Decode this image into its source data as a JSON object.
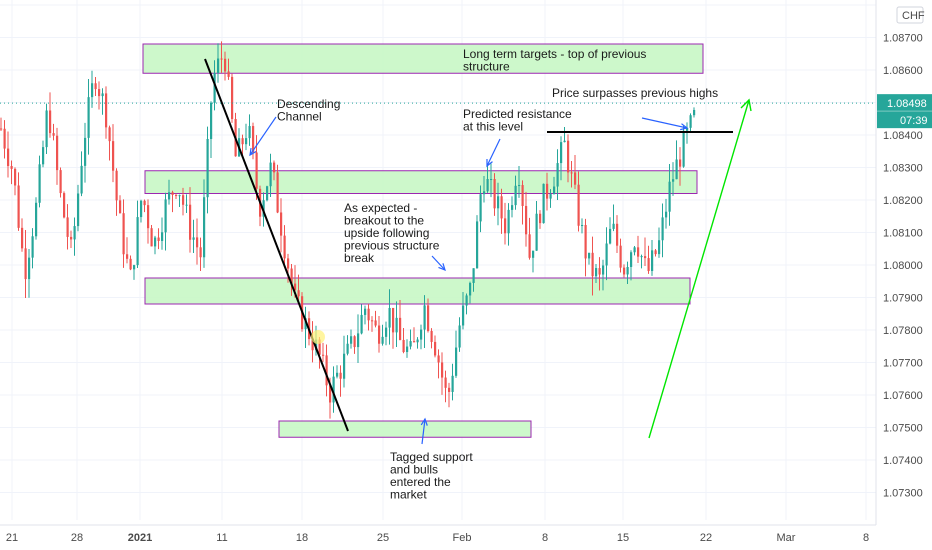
{
  "chart_data": {
    "type": "candlestick",
    "currency": "CHF",
    "y_ticks": [
      1.073,
      1.074,
      1.075,
      1.076,
      1.077,
      1.078,
      1.079,
      1.08,
      1.081,
      1.082,
      1.083,
      1.084,
      1.085,
      1.086,
      1.087,
      1.088
    ],
    "y_tick_labels": [
      "1.07300",
      "1.07400",
      "1.07500",
      "1.07600",
      "1.07700",
      "1.07800",
      "1.07900",
      "1.08000",
      "1.08100",
      "1.08200",
      "1.08300",
      "1.08400",
      "1.08500",
      "1.08600",
      "1.08700",
      "1.08800"
    ],
    "ylim": [
      1.0716,
      1.0893
    ],
    "x_ticks": [
      "21",
      "28",
      "2021",
      "11",
      "18",
      "25",
      "Feb",
      "8",
      "15",
      "22",
      "Mar",
      "8"
    ],
    "last_price": 1.08498,
    "last_price_label": "1.08498",
    "countdown": "07:39",
    "price_swing": [
      1.0842,
      1.0829,
      1.0798,
      1.0818,
      1.0849,
      1.0822,
      1.0803,
      1.0838,
      1.0859,
      1.0846,
      1.0815,
      1.0795,
      1.0822,
      1.0806,
      1.0818,
      1.0826,
      1.0812,
      1.0803,
      1.0857,
      1.0866,
      1.0832,
      1.0843,
      1.0818,
      1.083,
      1.0809,
      1.0789,
      1.0781,
      1.0773,
      1.0761,
      1.0769,
      1.0776,
      1.0787,
      1.0779,
      1.0786,
      1.0776,
      1.0772,
      1.0788,
      1.0775,
      1.0758,
      1.0781,
      1.0793,
      1.0828,
      1.082,
      1.0812,
      1.0832,
      1.0803,
      1.0819,
      1.0827,
      1.0837,
      1.0818,
      1.08,
      1.0795,
      1.0812,
      1.0799,
      1.0809,
      1.0797,
      1.0806,
      1.0825,
      1.0836,
      1.0845
    ],
    "zones": [
      {
        "top": 1.0868,
        "bottom": 1.0859
      },
      {
        "top": 1.0829,
        "bottom": 1.0822
      },
      {
        "top": 1.0796,
        "bottom": 1.0788
      },
      {
        "top": 1.0752,
        "bottom": 1.0747
      }
    ],
    "annotations": [
      {
        "text": [
          "Long term targets - top of previous",
          "structure"
        ]
      },
      {
        "text": [
          "Descending",
          "Channel"
        ]
      },
      {
        "text": [
          "Predicted resistance",
          "at this level"
        ]
      },
      {
        "text": [
          "Price surpasses previous highs"
        ]
      },
      {
        "text": [
          "As expected -",
          "breakout to the",
          "upside following",
          "previous structure",
          "break"
        ]
      },
      {
        "text": [
          "Tagged support",
          "and bulls",
          "entered the",
          "market"
        ]
      }
    ],
    "colors": {
      "up": "#26a69a",
      "down": "#ef5350",
      "zone_fill": "#c8f7c5",
      "zone_border": "#9c27b0",
      "accent": "#26a69a",
      "arrow_blue": "#2962ff",
      "trend_green": "#00e600",
      "line_black": "#000000"
    }
  }
}
